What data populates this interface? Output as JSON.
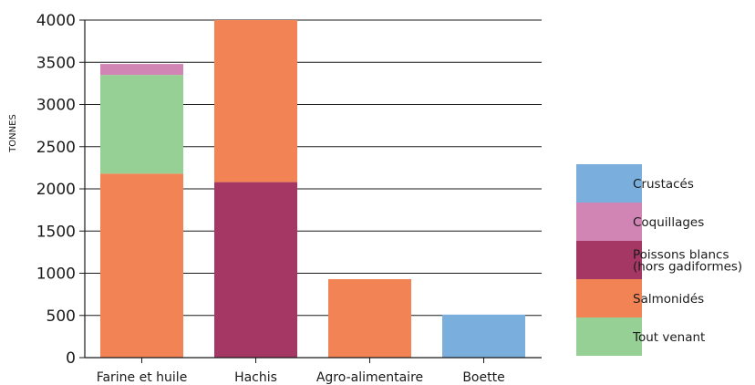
{
  "chart_data": {
    "type": "bar",
    "stacked": true,
    "title": "",
    "xlabel": "",
    "ylabel": "TONNES",
    "ylim": [
      0,
      4000
    ],
    "yticks": [
      0,
      500,
      1000,
      1500,
      2000,
      2500,
      3000,
      3500,
      4000
    ],
    "grid": true,
    "legend_position": "right",
    "categories": [
      "Farine et huile",
      "Hachis",
      "Agro-alimentaire",
      "Boette"
    ],
    "series": [
      {
        "name": "Salmonidés",
        "color": "#f28355",
        "values": [
          2180,
          1920,
          930,
          0
        ]
      },
      {
        "name": "Poissons blancs\n(hors gadiformes)",
        "color": "#a43763",
        "values": [
          0,
          2080,
          0,
          0
        ]
      },
      {
        "name": "Tout venant",
        "color": "#96d095",
        "values": [
          1170,
          0,
          0,
          0
        ]
      },
      {
        "name": "Coquillages",
        "color": "#d085b4",
        "values": [
          130,
          0,
          0,
          0
        ]
      },
      {
        "name": "Crustacés",
        "color": "#7aaedc",
        "values": [
          0,
          0,
          0,
          510
        ]
      }
    ],
    "stack_order": [
      [
        0,
        2,
        3
      ],
      [
        1,
        0
      ],
      [
        0
      ],
      [
        4
      ]
    ],
    "legend_order": [
      4,
      3,
      1,
      0,
      2
    ]
  }
}
